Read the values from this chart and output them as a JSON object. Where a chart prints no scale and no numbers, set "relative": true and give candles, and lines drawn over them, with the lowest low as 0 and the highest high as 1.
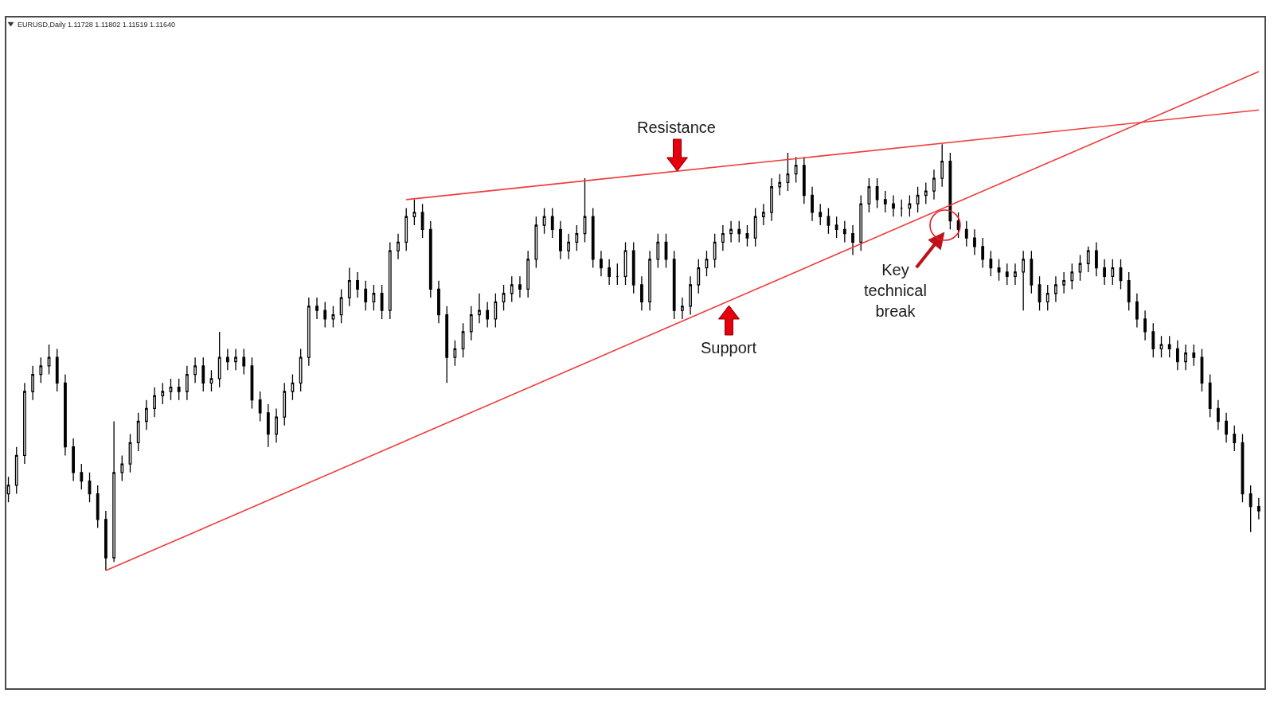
{
  "chart_data": {
    "type": "candlestick",
    "title": "EURUSD,Daily 1.11728 1.11802 1.11519 1.11640",
    "relative": true,
    "color": "#000000",
    "categories": [
      null,
      null,
      null,
      null,
      null,
      null,
      null,
      null,
      null,
      null,
      null,
      null,
      null,
      null,
      null,
      null,
      null,
      null,
      null,
      null,
      null,
      null,
      null,
      null,
      null,
      null,
      null,
      null,
      null,
      null,
      null,
      null,
      null,
      null,
      null,
      null,
      null,
      null,
      null,
      null,
      null,
      null,
      null,
      null,
      null,
      null,
      null,
      null,
      null,
      null,
      null,
      null,
      null,
      null,
      null,
      null,
      null,
      null,
      null,
      null,
      null,
      null,
      null,
      null,
      null,
      null,
      null,
      null,
      null,
      null,
      null,
      null,
      null,
      null,
      null,
      null,
      null,
      null,
      null,
      null,
      null,
      null,
      null,
      null,
      null,
      null,
      null,
      null,
      null,
      null,
      null,
      null,
      null,
      null,
      null,
      null,
      null,
      null,
      null,
      null,
      null,
      null,
      null,
      null,
      null,
      null,
      null,
      null,
      null,
      null,
      null,
      null,
      null,
      null,
      null,
      null,
      null,
      null,
      null,
      null,
      null,
      null,
      null,
      null,
      null,
      null,
      null,
      null,
      null,
      null,
      null,
      null,
      null,
      null,
      null,
      null,
      null,
      null,
      null,
      null,
      null,
      null,
      null,
      null,
      null,
      null,
      null,
      null,
      null,
      null,
      null,
      null,
      null,
      null,
      null
    ],
    "ohlc": [
      [
        0.18,
        0.22,
        0.16,
        0.2
      ],
      [
        0.2,
        0.29,
        0.18,
        0.27
      ],
      [
        0.27,
        0.44,
        0.25,
        0.42
      ],
      [
        0.42,
        0.48,
        0.4,
        0.46
      ],
      [
        0.46,
        0.5,
        0.44,
        0.48
      ],
      [
        0.48,
        0.53,
        0.46,
        0.5
      ],
      [
        0.5,
        0.52,
        0.42,
        0.44
      ],
      [
        0.44,
        0.46,
        0.27,
        0.29
      ],
      [
        0.29,
        0.31,
        0.21,
        0.23
      ],
      [
        0.23,
        0.25,
        0.19,
        0.21
      ],
      [
        0.21,
        0.23,
        0.16,
        0.18
      ],
      [
        0.18,
        0.2,
        0.1,
        0.12
      ],
      [
        0.12,
        0.14,
        0.0,
        0.03
      ],
      [
        0.03,
        0.35,
        0.02,
        0.23
      ],
      [
        0.23,
        0.27,
        0.21,
        0.25
      ],
      [
        0.25,
        0.32,
        0.23,
        0.3
      ],
      [
        0.3,
        0.37,
        0.28,
        0.35
      ],
      [
        0.35,
        0.4,
        0.33,
        0.38
      ],
      [
        0.38,
        0.43,
        0.36,
        0.41
      ],
      [
        0.41,
        0.44,
        0.39,
        0.42
      ],
      [
        0.42,
        0.45,
        0.4,
        0.43
      ],
      [
        0.43,
        0.45,
        0.4,
        0.42
      ],
      [
        0.42,
        0.48,
        0.4,
        0.46
      ],
      [
        0.46,
        0.5,
        0.44,
        0.48
      ],
      [
        0.48,
        0.5,
        0.42,
        0.44
      ],
      [
        0.44,
        0.47,
        0.42,
        0.45
      ],
      [
        0.45,
        0.56,
        0.43,
        0.5
      ],
      [
        0.5,
        0.52,
        0.47,
        0.49
      ],
      [
        0.49,
        0.52,
        0.47,
        0.5
      ],
      [
        0.5,
        0.52,
        0.46,
        0.48
      ],
      [
        0.48,
        0.5,
        0.38,
        0.4
      ],
      [
        0.4,
        0.42,
        0.35,
        0.37
      ],
      [
        0.37,
        0.39,
        0.29,
        0.32
      ],
      [
        0.32,
        0.38,
        0.3,
        0.36
      ],
      [
        0.36,
        0.44,
        0.34,
        0.42
      ],
      [
        0.42,
        0.46,
        0.4,
        0.44
      ],
      [
        0.44,
        0.52,
        0.42,
        0.5
      ],
      [
        0.5,
        0.64,
        0.48,
        0.62
      ],
      [
        0.62,
        0.64,
        0.59,
        0.61
      ],
      [
        0.61,
        0.63,
        0.57,
        0.59
      ],
      [
        0.59,
        0.62,
        0.57,
        0.6
      ],
      [
        0.6,
        0.66,
        0.58,
        0.64
      ],
      [
        0.64,
        0.71,
        0.62,
        0.68
      ],
      [
        0.68,
        0.7,
        0.64,
        0.66
      ],
      [
        0.66,
        0.68,
        0.61,
        0.63
      ],
      [
        0.63,
        0.67,
        0.61,
        0.65
      ],
      [
        0.65,
        0.67,
        0.59,
        0.61
      ],
      [
        0.61,
        0.77,
        0.59,
        0.75
      ],
      [
        0.75,
        0.79,
        0.73,
        0.77
      ],
      [
        0.77,
        0.85,
        0.75,
        0.83
      ],
      [
        0.83,
        0.87,
        0.81,
        0.84
      ],
      [
        0.84,
        0.86,
        0.78,
        0.8
      ],
      [
        0.8,
        0.82,
        0.64,
        0.66
      ],
      [
        0.66,
        0.68,
        0.58,
        0.6
      ],
      [
        0.6,
        0.62,
        0.44,
        0.5
      ],
      [
        0.5,
        0.54,
        0.48,
        0.52
      ],
      [
        0.52,
        0.58,
        0.5,
        0.56
      ],
      [
        0.56,
        0.62,
        0.54,
        0.6
      ],
      [
        0.6,
        0.65,
        0.58,
        0.61
      ],
      [
        0.61,
        0.63,
        0.57,
        0.59
      ],
      [
        0.59,
        0.65,
        0.57,
        0.63
      ],
      [
        0.63,
        0.67,
        0.61,
        0.65
      ],
      [
        0.65,
        0.69,
        0.63,
        0.67
      ],
      [
        0.67,
        0.69,
        0.64,
        0.66
      ],
      [
        0.66,
        0.75,
        0.64,
        0.73
      ],
      [
        0.73,
        0.83,
        0.71,
        0.81
      ],
      [
        0.81,
        0.85,
        0.79,
        0.83
      ],
      [
        0.83,
        0.85,
        0.78,
        0.8
      ],
      [
        0.8,
        0.82,
        0.73,
        0.75
      ],
      [
        0.75,
        0.79,
        0.73,
        0.77
      ],
      [
        0.77,
        0.81,
        0.75,
        0.79
      ],
      [
        0.79,
        0.92,
        0.77,
        0.83
      ],
      [
        0.83,
        0.85,
        0.71,
        0.73
      ],
      [
        0.73,
        0.75,
        0.69,
        0.71
      ],
      [
        0.71,
        0.73,
        0.67,
        0.69
      ],
      [
        0.69,
        0.72,
        0.67,
        0.69
      ],
      [
        0.69,
        0.77,
        0.67,
        0.75
      ],
      [
        0.75,
        0.77,
        0.65,
        0.67
      ],
      [
        0.67,
        0.69,
        0.61,
        0.63
      ],
      [
        0.63,
        0.75,
        0.61,
        0.73
      ],
      [
        0.73,
        0.79,
        0.71,
        0.77
      ],
      [
        0.77,
        0.79,
        0.71,
        0.73
      ],
      [
        0.73,
        0.75,
        0.59,
        0.61
      ],
      [
        0.61,
        0.64,
        0.59,
        0.62
      ],
      [
        0.62,
        0.69,
        0.6,
        0.67
      ],
      [
        0.67,
        0.73,
        0.65,
        0.71
      ],
      [
        0.71,
        0.75,
        0.69,
        0.73
      ],
      [
        0.73,
        0.79,
        0.71,
        0.77
      ],
      [
        0.77,
        0.81,
        0.75,
        0.79
      ],
      [
        0.79,
        0.82,
        0.77,
        0.8
      ],
      [
        0.8,
        0.82,
        0.77,
        0.79
      ],
      [
        0.79,
        0.81,
        0.76,
        0.78
      ],
      [
        0.78,
        0.85,
        0.76,
        0.83
      ],
      [
        0.83,
        0.86,
        0.81,
        0.84
      ],
      [
        0.84,
        0.92,
        0.82,
        0.9
      ],
      [
        0.9,
        0.93,
        0.88,
        0.91
      ],
      [
        0.91,
        0.98,
        0.89,
        0.93
      ],
      [
        0.93,
        0.97,
        0.91,
        0.95
      ],
      [
        0.95,
        0.97,
        0.86,
        0.88
      ],
      [
        0.88,
        0.9,
        0.82,
        0.84
      ],
      [
        0.84,
        0.86,
        0.81,
        0.83
      ],
      [
        0.83,
        0.85,
        0.79,
        0.81
      ],
      [
        0.81,
        0.83,
        0.78,
        0.8
      ],
      [
        0.8,
        0.82,
        0.77,
        0.79
      ],
      [
        0.79,
        0.81,
        0.74,
        0.77
      ],
      [
        0.77,
        0.88,
        0.75,
        0.86
      ],
      [
        0.86,
        0.92,
        0.84,
        0.9
      ],
      [
        0.9,
        0.92,
        0.85,
        0.87
      ],
      [
        0.87,
        0.89,
        0.84,
        0.86
      ],
      [
        0.86,
        0.88,
        0.83,
        0.85
      ],
      [
        0.85,
        0.87,
        0.83,
        0.85
      ],
      [
        0.85,
        0.88,
        0.83,
        0.86
      ],
      [
        0.86,
        0.9,
        0.84,
        0.88
      ],
      [
        0.88,
        0.91,
        0.86,
        0.89
      ],
      [
        0.89,
        0.94,
        0.87,
        0.92
      ],
      [
        0.92,
        1.0,
        0.9,
        0.96
      ],
      [
        0.96,
        0.98,
        0.8,
        0.82
      ],
      [
        0.82,
        0.84,
        0.78,
        0.8
      ],
      [
        0.8,
        0.82,
        0.76,
        0.78
      ],
      [
        0.78,
        0.8,
        0.74,
        0.76
      ],
      [
        0.76,
        0.78,
        0.71,
        0.73
      ],
      [
        0.73,
        0.75,
        0.69,
        0.71
      ],
      [
        0.71,
        0.73,
        0.68,
        0.7
      ],
      [
        0.7,
        0.72,
        0.67,
        0.69
      ],
      [
        0.69,
        0.72,
        0.67,
        0.7
      ],
      [
        0.7,
        0.75,
        0.61,
        0.73
      ],
      [
        0.73,
        0.75,
        0.65,
        0.67
      ],
      [
        0.67,
        0.69,
        0.61,
        0.63
      ],
      [
        0.63,
        0.67,
        0.61,
        0.65
      ],
      [
        0.65,
        0.69,
        0.63,
        0.67
      ],
      [
        0.67,
        0.7,
        0.65,
        0.68
      ],
      [
        0.68,
        0.72,
        0.66,
        0.7
      ],
      [
        0.7,
        0.74,
        0.68,
        0.72
      ],
      [
        0.72,
        0.76,
        0.7,
        0.75
      ],
      [
        0.75,
        0.77,
        0.69,
        0.71
      ],
      [
        0.71,
        0.73,
        0.67,
        0.69
      ],
      [
        0.69,
        0.73,
        0.67,
        0.71
      ],
      [
        0.71,
        0.73,
        0.66,
        0.68
      ],
      [
        0.68,
        0.7,
        0.61,
        0.63
      ],
      [
        0.63,
        0.65,
        0.57,
        0.59
      ],
      [
        0.59,
        0.61,
        0.54,
        0.56
      ],
      [
        0.56,
        0.58,
        0.5,
        0.52
      ],
      [
        0.52,
        0.55,
        0.5,
        0.53
      ],
      [
        0.53,
        0.55,
        0.5,
        0.52
      ],
      [
        0.52,
        0.54,
        0.47,
        0.49
      ],
      [
        0.49,
        0.53,
        0.47,
        0.51
      ],
      [
        0.51,
        0.53,
        0.48,
        0.5
      ],
      [
        0.5,
        0.52,
        0.42,
        0.44
      ],
      [
        0.44,
        0.46,
        0.36,
        0.38
      ],
      [
        0.38,
        0.4,
        0.33,
        0.35
      ],
      [
        0.35,
        0.37,
        0.3,
        0.32
      ],
      [
        0.32,
        0.34,
        0.28,
        0.3
      ],
      [
        0.3,
        0.32,
        0.16,
        0.18
      ],
      [
        0.18,
        0.2,
        0.09,
        0.15
      ],
      [
        0.15,
        0.17,
        0.12,
        0.14
      ]
    ],
    "series": [
      {
        "type": "line",
        "color": "#f03c3c",
        "values": [
          null,
          null,
          null,
          null,
          null,
          null,
          null,
          null,
          null,
          null,
          null,
          null,
          0.0,
          null,
          null,
          null,
          null,
          null,
          null,
          null,
          null,
          null,
          null,
          null,
          null,
          null,
          null,
          null,
          null,
          null,
          null,
          null,
          null,
          null,
          null,
          null,
          null,
          null,
          null,
          null,
          null,
          null,
          null,
          null,
          null,
          null,
          null,
          null,
          null,
          null,
          null,
          null,
          null,
          null,
          null,
          null,
          null,
          null,
          null,
          null,
          null,
          null,
          null,
          null,
          null,
          null,
          null,
          null,
          null,
          null,
          null,
          null,
          null,
          null,
          null,
          null,
          null,
          null,
          null,
          null,
          null,
          null,
          null,
          null,
          null,
          null,
          null,
          null,
          null,
          null,
          null,
          null,
          null,
          null,
          null,
          null,
          null,
          null,
          null,
          null,
          null,
          null,
          null,
          null,
          null,
          null,
          null,
          null,
          null,
          null,
          null,
          null,
          null,
          null,
          null,
          null,
          null,
          null,
          null,
          null,
          null,
          null,
          null,
          null,
          null,
          null,
          null,
          null,
          null,
          null,
          null,
          null,
          null,
          null,
          null,
          null,
          null,
          null,
          null,
          null,
          null,
          null,
          null,
          null,
          null,
          null,
          null,
          null,
          null,
          null,
          null,
          null,
          null,
          null,
          1.17
        ]
      },
      {
        "type": "line",
        "color": "#f03c3c",
        "values": [
          null,
          null,
          null,
          null,
          null,
          null,
          null,
          null,
          null,
          null,
          null,
          null,
          null,
          null,
          null,
          null,
          null,
          null,
          null,
          null,
          null,
          null,
          null,
          null,
          null,
          null,
          null,
          null,
          null,
          null,
          null,
          null,
          null,
          null,
          null,
          null,
          null,
          null,
          null,
          null,
          null,
          null,
          null,
          null,
          null,
          null,
          null,
          null,
          null,
          0.87,
          null,
          null,
          null,
          null,
          null,
          null,
          null,
          null,
          null,
          null,
          null,
          null,
          null,
          null,
          null,
          null,
          null,
          null,
          null,
          null,
          null,
          null,
          null,
          null,
          null,
          null,
          null,
          null,
          null,
          null,
          null,
          null,
          null,
          null,
          null,
          null,
          null,
          null,
          null,
          null,
          null,
          null,
          null,
          null,
          null,
          null,
          null,
          null,
          null,
          null,
          null,
          null,
          null,
          null,
          null,
          null,
          null,
          null,
          null,
          null,
          null,
          null,
          null,
          null,
          null,
          null,
          null,
          null,
          null,
          null,
          null,
          null,
          null,
          null,
          null,
          null,
          null,
          null,
          null,
          null,
          null,
          null,
          null,
          null,
          null,
          null,
          null,
          null,
          null,
          null,
          null,
          null,
          null,
          null,
          null,
          null,
          null,
          null,
          null,
          null,
          null,
          null,
          null,
          null,
          1.08
        ]
      }
    ],
    "annotations": [
      "Resistance",
      "Support",
      "Key\ntechnical\nbreak"
    ]
  }
}
